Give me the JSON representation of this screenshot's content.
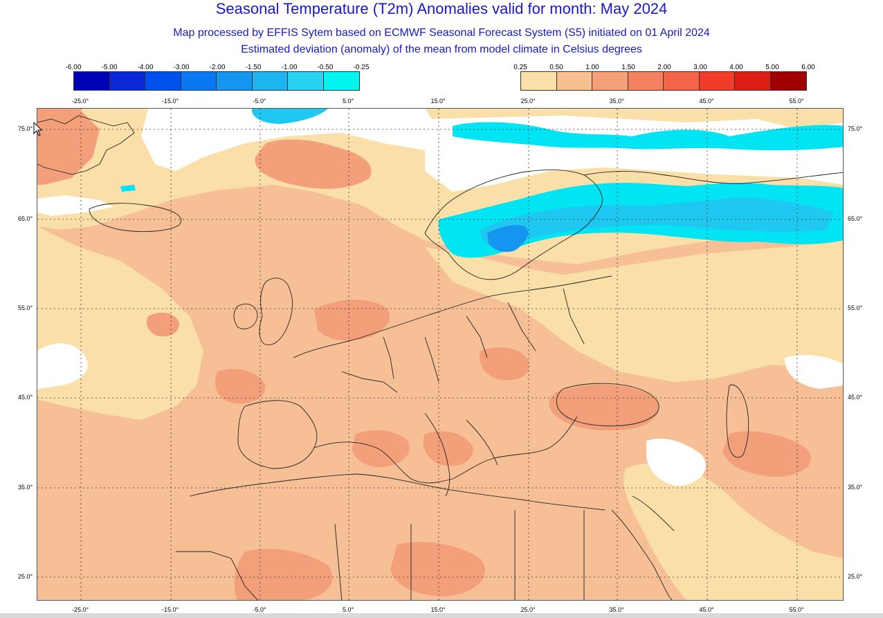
{
  "header": {
    "title": "Seasonal Temperature (T2m) Anomalies valid for month: May 2024",
    "subtitle": "Map processed by EFFIS Sytem based on ECMWF Seasonal Forecast System (S5) initiated on 01 April 2024",
    "description": "Estimated deviation (anomaly) of the mean from model climate in Celsius degrees"
  },
  "legend_negative": {
    "ticks": [
      "-6.00",
      "-5.00",
      "-4.00",
      "-3.00",
      "-2.00",
      "-1.50",
      "-1.00",
      "-0.50",
      "-0.25"
    ],
    "colors": [
      "#0000b4",
      "#0a28d8",
      "#0050f0",
      "#0a78f0",
      "#1496f0",
      "#1eb4f0",
      "#28d2f0",
      "#00f5f0"
    ]
  },
  "legend_positive": {
    "ticks": [
      "0.25",
      "0.50",
      "1.00",
      "1.50",
      "2.00",
      "3.00",
      "4.00",
      "5.00",
      "6.00"
    ],
    "colors": [
      "#fae0a8",
      "#f8c090",
      "#f5a078",
      "#f48260",
      "#f36448",
      "#f03c28",
      "#dc1e14",
      "#a00000"
    ]
  },
  "map": {
    "lon_labels": [
      "-25.0°",
      "-15.0°",
      "-5.0°",
      "5.0°",
      "15.0°",
      "25.0°",
      "35.0°",
      "45.0°",
      "55.0°"
    ],
    "lat_labels": [
      "75.0°",
      "65.0°",
      "55.0°",
      "45.0°",
      "35.0°",
      "25.0°"
    ],
    "colors": {
      "ocean_base": "#f6bf96",
      "weak_warm": "#fae0a8",
      "warm": "#f6bf96",
      "stronger_warm": "#f3a07a",
      "neutral": "#ffffff",
      "cool_light": "#1ec8f0",
      "cool": "#00e4f4",
      "cool_deep": "#1496f0",
      "border_line": "#222222",
      "grid_line": "#333333"
    }
  }
}
